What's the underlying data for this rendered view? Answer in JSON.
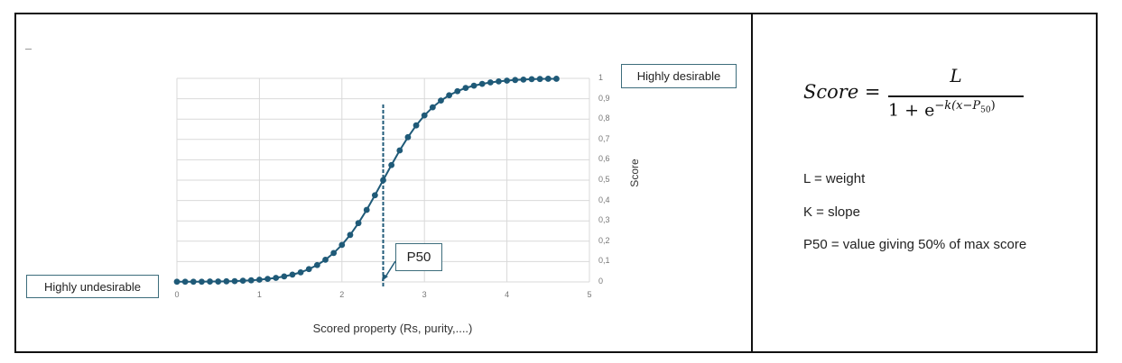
{
  "labels": {
    "highly_undesirable": "Highly undesirable",
    "highly_desirable": "Highly desirable",
    "p50_callout": "P50",
    "x_axis_label": "Scored property (Rs, purity,....)",
    "y_axis_label": "Score"
  },
  "formula": {
    "lhs": "Score =",
    "numerator": "L",
    "denominator_base": "1 + e",
    "exponent": "−k(x−P",
    "exponent_sub": "50",
    "exponent_close": ")"
  },
  "definitions": [
    "L = weight",
    "K = slope",
    "P50 = value giving 50% of max score"
  ],
  "colors": {
    "series": "#1f5a78",
    "callout_border": "#3d6d7c",
    "grid": "#d9d9d9"
  },
  "chart_data": {
    "type": "scatter",
    "title": "",
    "xlabel": "Scored property (Rs, purity,....)",
    "ylabel": "Score",
    "xlim": [
      0,
      5
    ],
    "ylim": [
      0,
      1
    ],
    "x_ticks": [
      "0",
      "1",
      "2",
      "3",
      "4",
      "5"
    ],
    "y_ticks": [
      "0",
      "0,1",
      "0,2",
      "0,3",
      "0,4",
      "0,5",
      "0,6",
      "0,7",
      "0,8",
      "0,9",
      "1"
    ],
    "y_axis_position": "right",
    "grid": true,
    "legend": "none",
    "annotations": [
      {
        "text": "P50",
        "x": 2.5,
        "y": 0.03,
        "type": "callout"
      },
      {
        "type": "vline",
        "x": 2.5,
        "style": "dashed"
      },
      {
        "text": "Highly undesirable",
        "position": "left-bottom"
      },
      {
        "text": "Highly desirable",
        "position": "right-top"
      }
    ],
    "series": [
      {
        "name": "Score",
        "function": "1/(1+exp(-3*(x-2.5)))",
        "x": [
          0,
          0.1,
          0.2,
          0.3,
          0.4,
          0.5,
          0.6,
          0.7,
          0.8,
          0.9,
          1.0,
          1.1,
          1.2,
          1.3,
          1.4,
          1.5,
          1.6,
          1.7,
          1.8,
          1.9,
          2.0,
          2.1,
          2.2,
          2.3,
          2.4,
          2.5,
          2.6,
          2.7,
          2.8,
          2.9,
          3.0,
          3.1,
          3.2,
          3.3,
          3.4,
          3.5,
          3.6,
          3.7,
          3.8,
          3.9,
          4.0,
          4.1,
          4.2,
          4.3,
          4.4,
          4.5,
          4.6
        ],
        "values": [
          0.001,
          0.001,
          0.001,
          0.001,
          0.002,
          0.002,
          0.003,
          0.004,
          0.006,
          0.008,
          0.011,
          0.015,
          0.02,
          0.027,
          0.036,
          0.047,
          0.063,
          0.083,
          0.109,
          0.142,
          0.182,
          0.231,
          0.289,
          0.354,
          0.426,
          0.5,
          0.574,
          0.646,
          0.711,
          0.769,
          0.818,
          0.858,
          0.891,
          0.917,
          0.937,
          0.953,
          0.964,
          0.973,
          0.98,
          0.985,
          0.989,
          0.992,
          0.994,
          0.996,
          0.997,
          0.998,
          0.998
        ]
      }
    ]
  }
}
